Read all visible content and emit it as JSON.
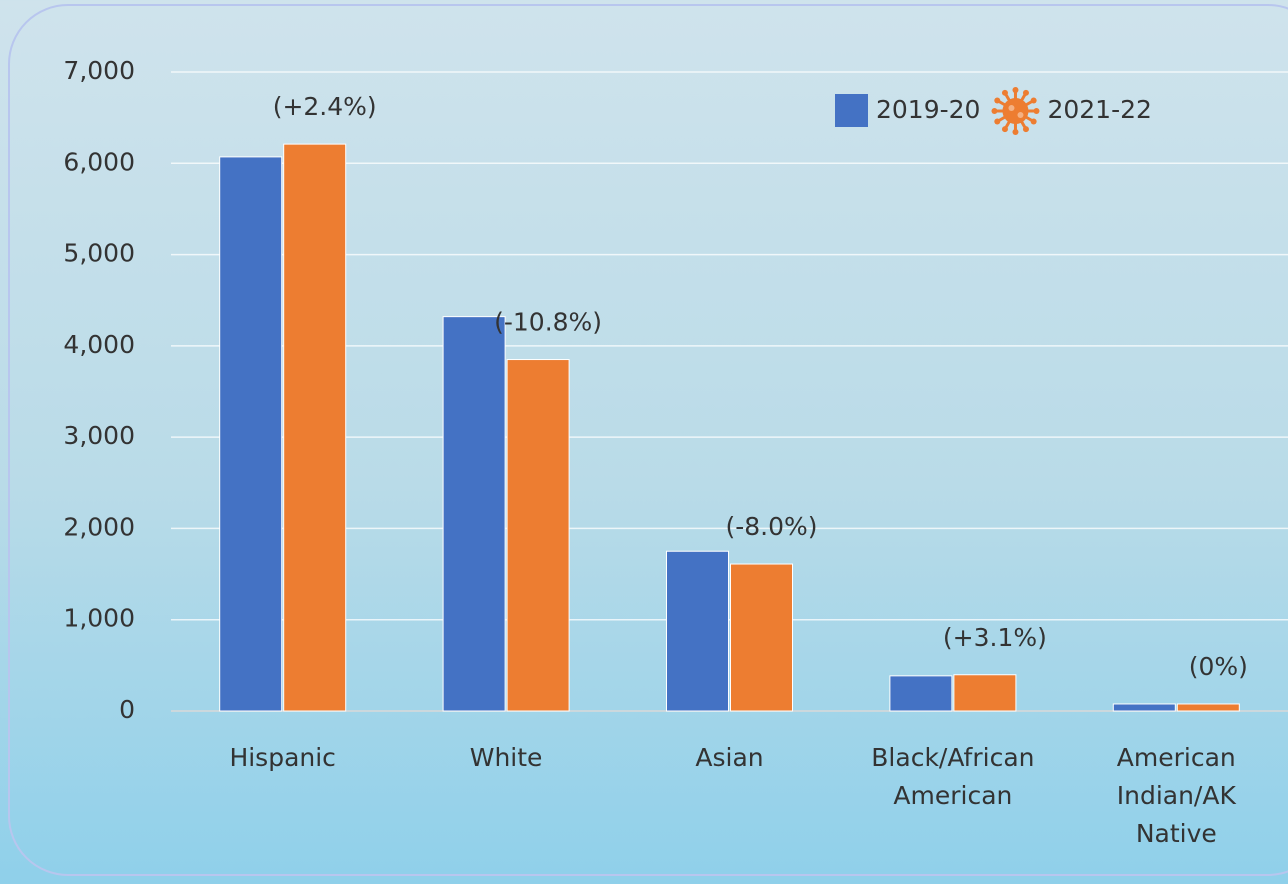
{
  "chart_data": {
    "type": "bar",
    "categories": [
      "Hispanic",
      "White",
      "Asian",
      "Black/African American",
      "American Indian/AK Native"
    ],
    "series": [
      {
        "name": "2019-20",
        "color": "#4472c4",
        "values": [
          6070,
          4320,
          1750,
          385,
          77
        ]
      },
      {
        "name": "2021-22",
        "color": "#ed7d31",
        "values": [
          6210,
          3850,
          1610,
          397,
          77
        ]
      }
    ],
    "annotations": [
      "(+2.4%)",
      "(-10.8%)",
      "(-8.0%)",
      "(+3.1%)",
      "(0%)"
    ],
    "ylim": [
      0,
      7000
    ],
    "yticks": [
      0,
      {
        "value": 1000,
        "label": "1,000"
      },
      {
        "value": 2000,
        "label": "2,000"
      },
      {
        "value": 3000,
        "label": "3,000"
      },
      {
        "value": 4000,
        "label": "4,000"
      },
      {
        "value": 5000,
        "label": "5,000"
      },
      {
        "value": 6000,
        "label": "6,000"
      },
      {
        "value": 7000,
        "label": "7,000"
      }
    ],
    "grid": true,
    "legend": "top-right"
  }
}
